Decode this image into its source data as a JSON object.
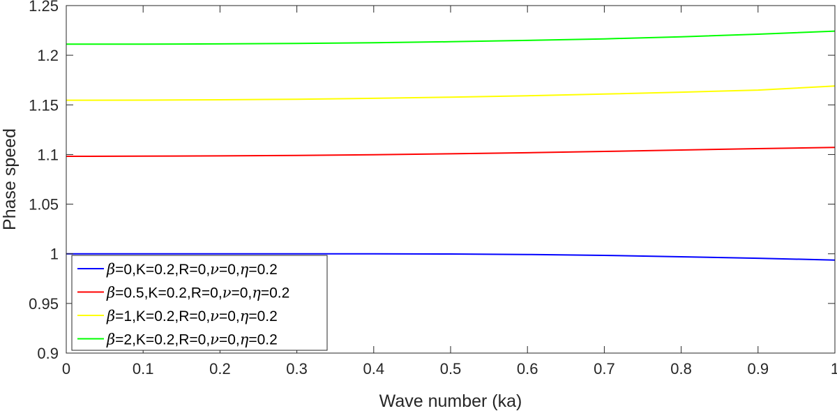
{
  "chart_data": {
    "type": "line",
    "title": "",
    "xlabel": "Wave number (ka)",
    "ylabel": "Phase speed",
    "xlim": [
      0,
      1
    ],
    "ylim": [
      0.9,
      1.25
    ],
    "xticks": [
      0,
      0.1,
      0.2,
      0.3,
      0.4,
      0.5,
      0.6,
      0.7,
      0.8,
      0.9,
      1
    ],
    "xtick_labels": [
      "0",
      "0.1",
      "0.2",
      "0.3",
      "0.4",
      "0.5",
      "0.6",
      "0.7",
      "0.8",
      "0.9",
      "1"
    ],
    "yticks": [
      0.9,
      0.95,
      1,
      1.05,
      1.1,
      1.15,
      1.2,
      1.25
    ],
    "ytick_labels": [
      "0.9",
      "0.95",
      "1",
      "1.05",
      "1.1",
      "1.15",
      "1.2",
      "1.25"
    ],
    "grid": false,
    "legend_position": "bottom-left",
    "x": [
      0,
      0.1,
      0.2,
      0.3,
      0.4,
      0.5,
      0.6,
      0.7,
      0.8,
      0.9,
      1.0
    ],
    "series": [
      {
        "label_parts": [
          [
            "greek",
            "β"
          ],
          [
            "text",
            "=0,K=0.2,R=0,"
          ],
          [
            "greek",
            "ν"
          ],
          [
            "text",
            "=0,"
          ],
          [
            "greek",
            "η"
          ],
          [
            "text",
            "=0.2"
          ]
        ],
        "color": "#0000ff",
        "values": [
          1.0,
          1.0,
          1.0,
          1.0,
          1.0,
          0.9998,
          0.9993,
          0.9984,
          0.997,
          0.9955,
          0.9937
        ]
      },
      {
        "label_parts": [
          [
            "greek",
            "β"
          ],
          [
            "text",
            "=0.5,K=0.2,R=0,"
          ],
          [
            "greek",
            "ν"
          ],
          [
            "text",
            "=0,"
          ],
          [
            "greek",
            "η"
          ],
          [
            "text",
            "=0.2"
          ]
        ],
        "color": "#ff0000",
        "values": [
          1.0982,
          1.0983,
          1.0986,
          1.0991,
          1.0998,
          1.1007,
          1.1018,
          1.1031,
          1.1045,
          1.1059,
          1.1072
        ]
      },
      {
        "label_parts": [
          [
            "greek",
            "β"
          ],
          [
            "text",
            "=1,K=0.2,R=0,"
          ],
          [
            "greek",
            "ν"
          ],
          [
            "text",
            "=0,"
          ],
          [
            "greek",
            "η"
          ],
          [
            "text",
            "=0.2"
          ]
        ],
        "color": "#ffff00",
        "values": [
          1.1547,
          1.1548,
          1.1551,
          1.1557,
          1.1566,
          1.1578,
          1.1592,
          1.1609,
          1.1628,
          1.1649,
          1.169
        ]
      },
      {
        "label_parts": [
          [
            "greek",
            "β"
          ],
          [
            "text",
            "=2,K=0.2,R=0,"
          ],
          [
            "greek",
            "ν"
          ],
          [
            "text",
            "=0,"
          ],
          [
            "greek",
            "η"
          ],
          [
            "text",
            "=0.2"
          ]
        ],
        "color": "#00ff00",
        "values": [
          1.2111,
          1.2112,
          1.2114,
          1.2119,
          1.2126,
          1.2136,
          1.2149,
          1.2165,
          1.2186,
          1.2212,
          1.2243
        ]
      }
    ]
  }
}
